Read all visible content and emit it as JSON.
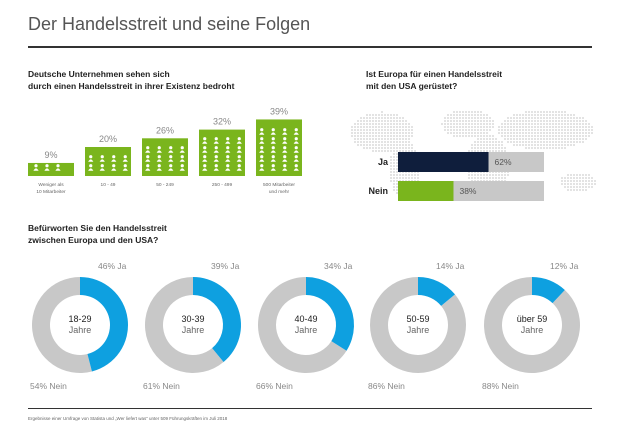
{
  "title": "Der Handelsstreit und seine Folgen",
  "footer": "Ergebnisse einer Umfrage von Statista und „Wer liefert was“ unter 509 Führungskräften im Juli 2018",
  "colors": {
    "green": "#7ab51d",
    "navy": "#0f1e3c",
    "blue": "#0ea0e0",
    "gray": "#c8c8c8",
    "text": "#222222"
  },
  "icons": {
    "employee": "person-icon"
  },
  "section1": {
    "heading_line1": "Deutsche Unternehmen sehen sich",
    "heading_line2": "durch einen Handelsstreit in ihrer Existenz bedroht"
  },
  "section2": {
    "heading_line1": "Ist Europa für einen Handelsstreit",
    "heading_line2": "mit den USA gerüstet?"
  },
  "section3": {
    "heading_line1": "Befürworten Sie den Handelsstreit",
    "heading_line2": "zwischen Europa und den USA?"
  },
  "chart_data": [
    {
      "type": "bar",
      "categories": [
        [
          "Weniger als",
          "10 Mitarbeiter"
        ],
        [
          "10 - 49"
        ],
        [
          "50 - 249"
        ],
        [
          "250 - 499"
        ],
        [
          "500 Mitarbeiter",
          "und mehr"
        ]
      ],
      "values": [
        9,
        20,
        26,
        32,
        39
      ],
      "value_labels": [
        "9%",
        "20%",
        "26%",
        "32%",
        "39%"
      ],
      "color": "#7ab51d"
    },
    {
      "type": "bar",
      "orientation": "horizontal",
      "categories": [
        "Ja",
        "Nein"
      ],
      "values": [
        62,
        38
      ],
      "value_labels": [
        "62%",
        "38%"
      ],
      "colors": [
        "#0f1e3c",
        "#7ab51d"
      ],
      "xlim": [
        0,
        100
      ]
    },
    {
      "type": "pie",
      "style": "donut",
      "groups": [
        {
          "label": [
            "18-29",
            "Jahre"
          ],
          "ja": 46,
          "nein": 54,
          "ja_label": "46% Ja",
          "nein_label": "54% Nein"
        },
        {
          "label": [
            "30-39",
            "Jahre"
          ],
          "ja": 39,
          "nein": 61,
          "ja_label": "39% Ja",
          "nein_label": "61% Nein"
        },
        {
          "label": [
            "40-49",
            "Jahre"
          ],
          "ja": 34,
          "nein": 66,
          "ja_label": "34% Ja",
          "nein_label": "66% Nein"
        },
        {
          "label": [
            "50-59",
            "Jahre"
          ],
          "ja": 14,
          "nein": 86,
          "ja_label": "14% Ja",
          "nein_label": "86% Nein"
        },
        {
          "label": [
            "über 59",
            "Jahre"
          ],
          "ja": 12,
          "nein": 88,
          "ja_label": "12% Ja",
          "nein_label": "88% Nein"
        }
      ]
    }
  ]
}
